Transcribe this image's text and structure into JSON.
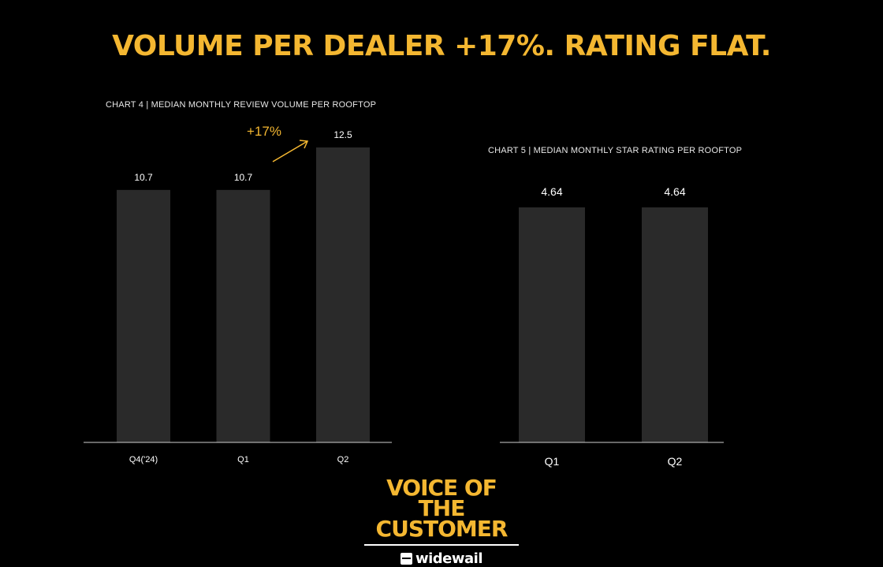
{
  "headline": "VOLUME PER DEALER +17%. RATING FLAT.",
  "chart_data": [
    {
      "type": "bar",
      "title": "CHART 4 | MEDIAN MONTHLY REVIEW VOLUME PER ROOFTOP",
      "categories": [
        "Q4('24)",
        "Q1",
        "Q2"
      ],
      "values": [
        10.7,
        10.7,
        12.5
      ],
      "value_labels": [
        "10.7",
        "10.7",
        "12.5"
      ],
      "ylim": [
        0,
        12.5
      ],
      "bar_color": "#2a2a2a",
      "annotation": "+17%",
      "annotation_color": "#f4b731",
      "grid": false
    },
    {
      "type": "bar",
      "title": "CHART 5 | MEDIAN MONTHLY STAR RATING PER ROOFTOP",
      "categories": [
        "Q1",
        "Q2"
      ],
      "values": [
        4.64,
        4.64
      ],
      "value_labels": [
        "4.64",
        "4.64"
      ],
      "ylim": [
        0,
        4.64
      ],
      "bar_color": "#2a2a2a",
      "grid": false
    }
  ],
  "brand": {
    "line1": "VOICE OF THE",
    "line2": "CUSTOMER",
    "logo_text": "widewail",
    "logo_icon": "widewail-logo-icon"
  }
}
